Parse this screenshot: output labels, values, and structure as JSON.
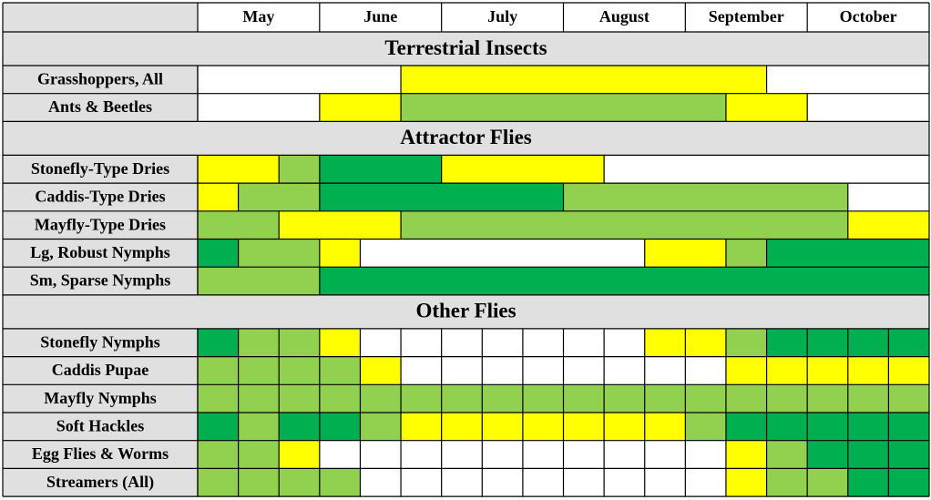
{
  "months": [
    "May",
    "June",
    "July",
    "August",
    "September",
    "October"
  ],
  "sections": [
    {
      "title": "Terrestrial Insects",
      "cell_borders": false,
      "rows": [
        {
          "label": "Grasshoppers, All",
          "cells": [
            "#ffffff",
            "#ffffff",
            "#ffffff",
            "#ffffff",
            "#ffffff",
            "#ffff00",
            "#ffff00",
            "#ffff00",
            "#ffff00",
            "#ffff00",
            "#ffff00",
            "#ffff00",
            "#ffff00",
            "#ffff00",
            "#ffffff",
            "#ffffff",
            "#ffffff",
            "#ffffff"
          ]
        },
        {
          "label": "Ants & Beetles",
          "cells": [
            "#ffffff",
            "#ffffff",
            "#ffffff",
            "#ffff00",
            "#ffff00",
            "#92d050",
            "#92d050",
            "#92d050",
            "#92d050",
            "#92d050",
            "#92d050",
            "#92d050",
            "#92d050",
            "#ffff00",
            "#ffff00",
            "#ffffff",
            "#ffffff",
            "#ffffff"
          ]
        }
      ]
    },
    {
      "title": "Attractor Flies",
      "cell_borders": false,
      "rows": [
        {
          "label": "Stonefly-Type Dries",
          "cells": [
            "#ffff00",
            "#ffff00",
            "#92d050",
            "#00b050",
            "#00b050",
            "#00b050",
            "#ffff00",
            "#ffff00",
            "#ffff00",
            "#ffff00",
            "#ffffff",
            "#ffffff",
            "#ffffff",
            "#ffffff",
            "#ffffff",
            "#ffffff",
            "#ffffff",
            "#ffffff"
          ]
        },
        {
          "label": "Caddis-Type Dries",
          "cells": [
            "#ffff00",
            "#92d050",
            "#92d050",
            "#00b050",
            "#00b050",
            "#00b050",
            "#00b050",
            "#00b050",
            "#00b050",
            "#92d050",
            "#92d050",
            "#92d050",
            "#92d050",
            "#92d050",
            "#92d050",
            "#92d050",
            "#ffffff",
            "#ffffff"
          ]
        },
        {
          "label": "Mayfly-Type Dries",
          "cells": [
            "#92d050",
            "#92d050",
            "#ffff00",
            "#ffff00",
            "#ffff00",
            "#92d050",
            "#92d050",
            "#92d050",
            "#92d050",
            "#92d050",
            "#92d050",
            "#92d050",
            "#92d050",
            "#92d050",
            "#92d050",
            "#92d050",
            "#ffff00",
            "#ffff00"
          ]
        },
        {
          "label": "Lg, Robust Nymphs",
          "cells": [
            "#00b050",
            "#92d050",
            "#92d050",
            "#ffff00",
            "#ffffff",
            "#ffffff",
            "#ffffff",
            "#ffffff",
            "#ffffff",
            "#ffffff",
            "#ffffff",
            "#ffff00",
            "#ffff00",
            "#92d050",
            "#00b050",
            "#00b050",
            "#00b050",
            "#00b050"
          ]
        },
        {
          "label": "Sm, Sparse Nymphs",
          "cells": [
            "#92d050",
            "#92d050",
            "#92d050",
            "#00b050",
            "#00b050",
            "#00b050",
            "#00b050",
            "#00b050",
            "#00b050",
            "#00b050",
            "#00b050",
            "#00b050",
            "#00b050",
            "#00b050",
            "#00b050",
            "#00b050",
            "#00b050",
            "#00b050"
          ]
        }
      ]
    },
    {
      "title": "Other Flies",
      "cell_borders": true,
      "rows": [
        {
          "label": "Stonefly Nymphs",
          "cells": [
            "#00b050",
            "#92d050",
            "#92d050",
            "#ffff00",
            "#ffffff",
            "#ffffff",
            "#ffffff",
            "#ffffff",
            "#ffffff",
            "#ffffff",
            "#ffffff",
            "#ffff00",
            "#ffff00",
            "#92d050",
            "#00b050",
            "#00b050",
            "#00b050",
            "#00b050"
          ]
        },
        {
          "label": "Caddis Pupae",
          "cells": [
            "#92d050",
            "#92d050",
            "#92d050",
            "#92d050",
            "#ffff00",
            "#ffffff",
            "#ffffff",
            "#ffffff",
            "#ffffff",
            "#ffffff",
            "#ffffff",
            "#ffffff",
            "#ffffff",
            "#ffff00",
            "#ffff00",
            "#ffff00",
            "#ffff00",
            "#ffff00"
          ]
        },
        {
          "label": "Mayfly Nymphs",
          "cells": [
            "#92d050",
            "#92d050",
            "#92d050",
            "#92d050",
            "#92d050",
            "#92d050",
            "#92d050",
            "#92d050",
            "#92d050",
            "#92d050",
            "#92d050",
            "#92d050",
            "#92d050",
            "#92d050",
            "#92d050",
            "#92d050",
            "#92d050",
            "#92d050"
          ]
        },
        {
          "label": "Soft Hackles",
          "cells": [
            "#00b050",
            "#92d050",
            "#00b050",
            "#00b050",
            "#92d050",
            "#ffff00",
            "#ffff00",
            "#ffff00",
            "#ffff00",
            "#ffff00",
            "#ffff00",
            "#ffff00",
            "#92d050",
            "#00b050",
            "#00b050",
            "#00b050",
            "#00b050",
            "#00b050"
          ]
        },
        {
          "label": "Egg Flies & Worms",
          "cells": [
            "#92d050",
            "#92d050",
            "#ffff00",
            "#ffffff",
            "#ffffff",
            "#ffffff",
            "#ffffff",
            "#ffffff",
            "#ffffff",
            "#ffffff",
            "#ffffff",
            "#ffffff",
            "#ffffff",
            "#ffff00",
            "#92d050",
            "#00b050",
            "#00b050",
            "#00b050"
          ]
        },
        {
          "label": "Streamers (All)",
          "cells": [
            "#92d050",
            "#92d050",
            "#92d050",
            "#92d050",
            "#ffffff",
            "#ffffff",
            "#ffffff",
            "#ffffff",
            "#ffffff",
            "#ffffff",
            "#ffffff",
            "#ffffff",
            "#ffffff",
            "#ffff00",
            "#92d050",
            "#92d050",
            "#00b050",
            "#00b050"
          ]
        }
      ]
    }
  ]
}
